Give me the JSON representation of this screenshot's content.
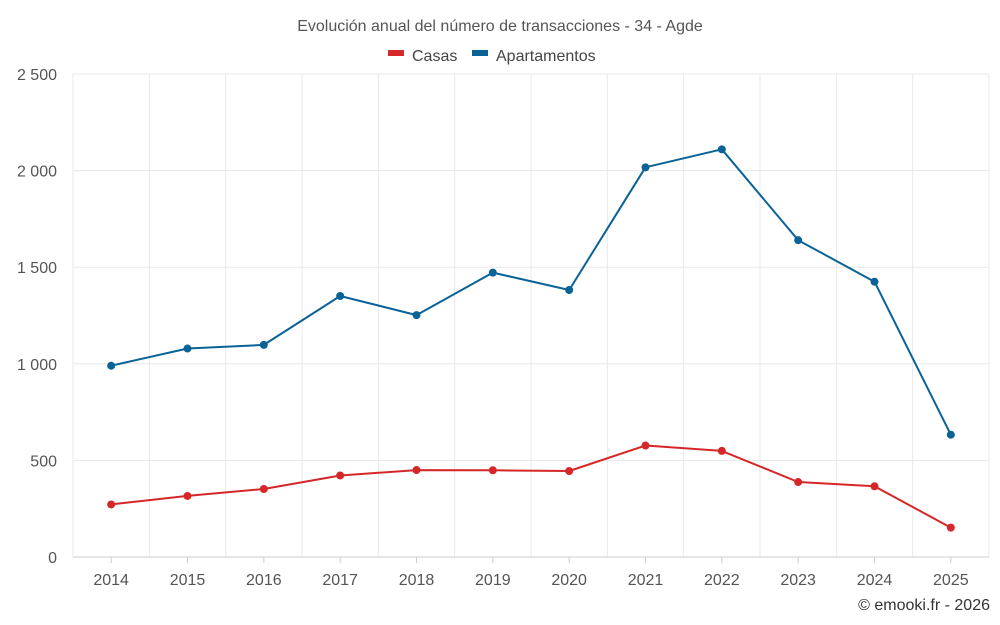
{
  "chart_data": {
    "type": "line",
    "title": "Evolución anual del número de transacciones - 34 - Agde",
    "categories": [
      "2014",
      "2015",
      "2016",
      "2017",
      "2018",
      "2019",
      "2020",
      "2021",
      "2022",
      "2023",
      "2024",
      "2025"
    ],
    "series": [
      {
        "name": "Casas",
        "color": "#d62728",
        "values": [
          272,
          316,
          352,
          422,
          450,
          449,
          445,
          577,
          549,
          388,
          366,
          152
        ]
      },
      {
        "name": "Apartamentos",
        "color": "#0a6396",
        "values": [
          990,
          1079,
          1098,
          1351,
          1252,
          1472,
          1382,
          2017,
          2110,
          1640,
          1425,
          633
        ]
      }
    ],
    "ylim": [
      0,
      2500
    ],
    "yticks": [
      0,
      500,
      1000,
      1500,
      2000,
      2500
    ],
    "ytick_labels": [
      "0",
      "500",
      "1 000",
      "1 500",
      "2 000",
      "2 500"
    ],
    "xlabel": "",
    "ylabel": "",
    "legend_position": "top-center",
    "grid": true
  },
  "credit": "© emooki.fr - 2026"
}
